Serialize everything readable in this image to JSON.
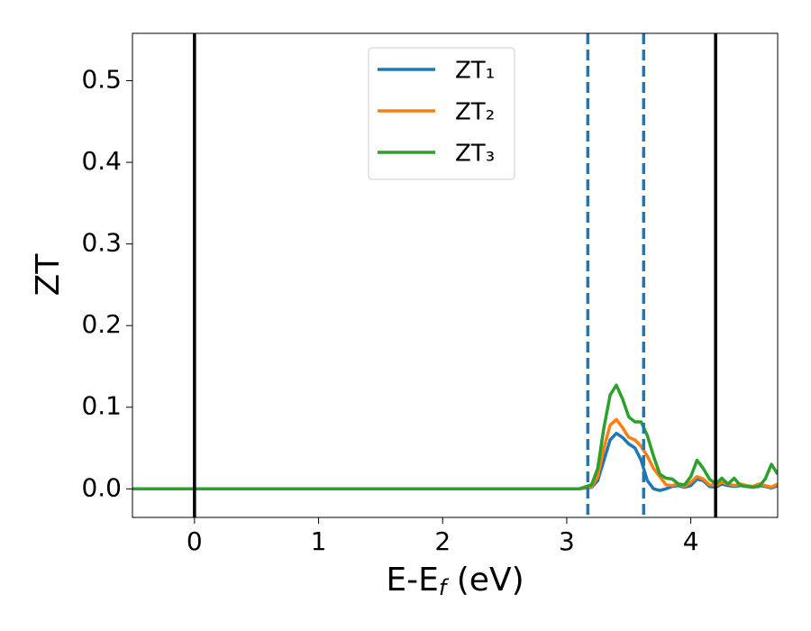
{
  "chart_data": {
    "type": "line",
    "xlabel": [
      "E-E",
      "f",
      " (eV)"
    ],
    "ylabel": "ZT",
    "x": [
      -0.5,
      3.1,
      3.2,
      3.25,
      3.3,
      3.35,
      3.4,
      3.45,
      3.5,
      3.55,
      3.6,
      3.65,
      3.7,
      3.75,
      3.8,
      3.85,
      3.9,
      3.95,
      4.0,
      4.05,
      4.1,
      4.15,
      4.2,
      4.25,
      4.3,
      4.35,
      4.4,
      4.45,
      4.5,
      4.55,
      4.6,
      4.65,
      4.7
    ],
    "series": [
      {
        "name": "ZT₁",
        "color": "#1f77b4",
        "values": [
          0,
          0,
          0.002,
          0.01,
          0.035,
          0.06,
          0.068,
          0.063,
          0.055,
          0.05,
          0.035,
          0.01,
          0.0,
          -0.002,
          0.0,
          0.003,
          0.004,
          0.002,
          0.004,
          0.012,
          0.01,
          0.003,
          0.002,
          0.006,
          0.004,
          0.003,
          0.004,
          0.003,
          0.002,
          0.004,
          0.003,
          0.001,
          0.004
        ]
      },
      {
        "name": "ZT₂",
        "color": "#ff7f0e",
        "values": [
          0,
          0,
          0.003,
          0.015,
          0.05,
          0.078,
          0.085,
          0.075,
          0.063,
          0.06,
          0.052,
          0.04,
          0.025,
          0.015,
          0.005,
          0.004,
          0.006,
          0.003,
          0.008,
          0.015,
          0.012,
          0.005,
          0.004,
          0.008,
          0.006,
          0.004,
          0.006,
          0.004,
          0.003,
          0.006,
          0.004,
          0.002,
          0.006
        ]
      },
      {
        "name": "ZT₃",
        "color": "#2ca02c",
        "values": [
          0,
          0,
          0.005,
          0.025,
          0.075,
          0.115,
          0.127,
          0.11,
          0.088,
          0.082,
          0.082,
          0.065,
          0.04,
          0.018,
          0.013,
          0.012,
          0.006,
          0.005,
          0.015,
          0.035,
          0.025,
          0.012,
          0.006,
          0.013,
          0.006,
          0.013,
          0.004,
          0.003,
          0.002,
          0.003,
          0.012,
          0.03,
          0.018
        ]
      }
    ],
    "vlines": [
      {
        "x": 0,
        "color": "#000000",
        "style": "solid"
      },
      {
        "x": 4.2,
        "color": "#000000",
        "style": "solid"
      },
      {
        "x": 3.17,
        "color": "#1f77b4",
        "style": "dashed"
      },
      {
        "x": 3.62,
        "color": "#1f77b4",
        "style": "dashed"
      }
    ],
    "xlim": [
      -0.5,
      4.7
    ],
    "ylim": [
      -0.035,
      0.558
    ],
    "xticks": [
      0,
      1,
      2,
      3,
      4
    ],
    "yticks": [
      {
        "value": 0,
        "label": "0.0"
      },
      0.1,
      0.2,
      0.3,
      0.4,
      0.5
    ],
    "legend": "upper center",
    "grid": false
  }
}
